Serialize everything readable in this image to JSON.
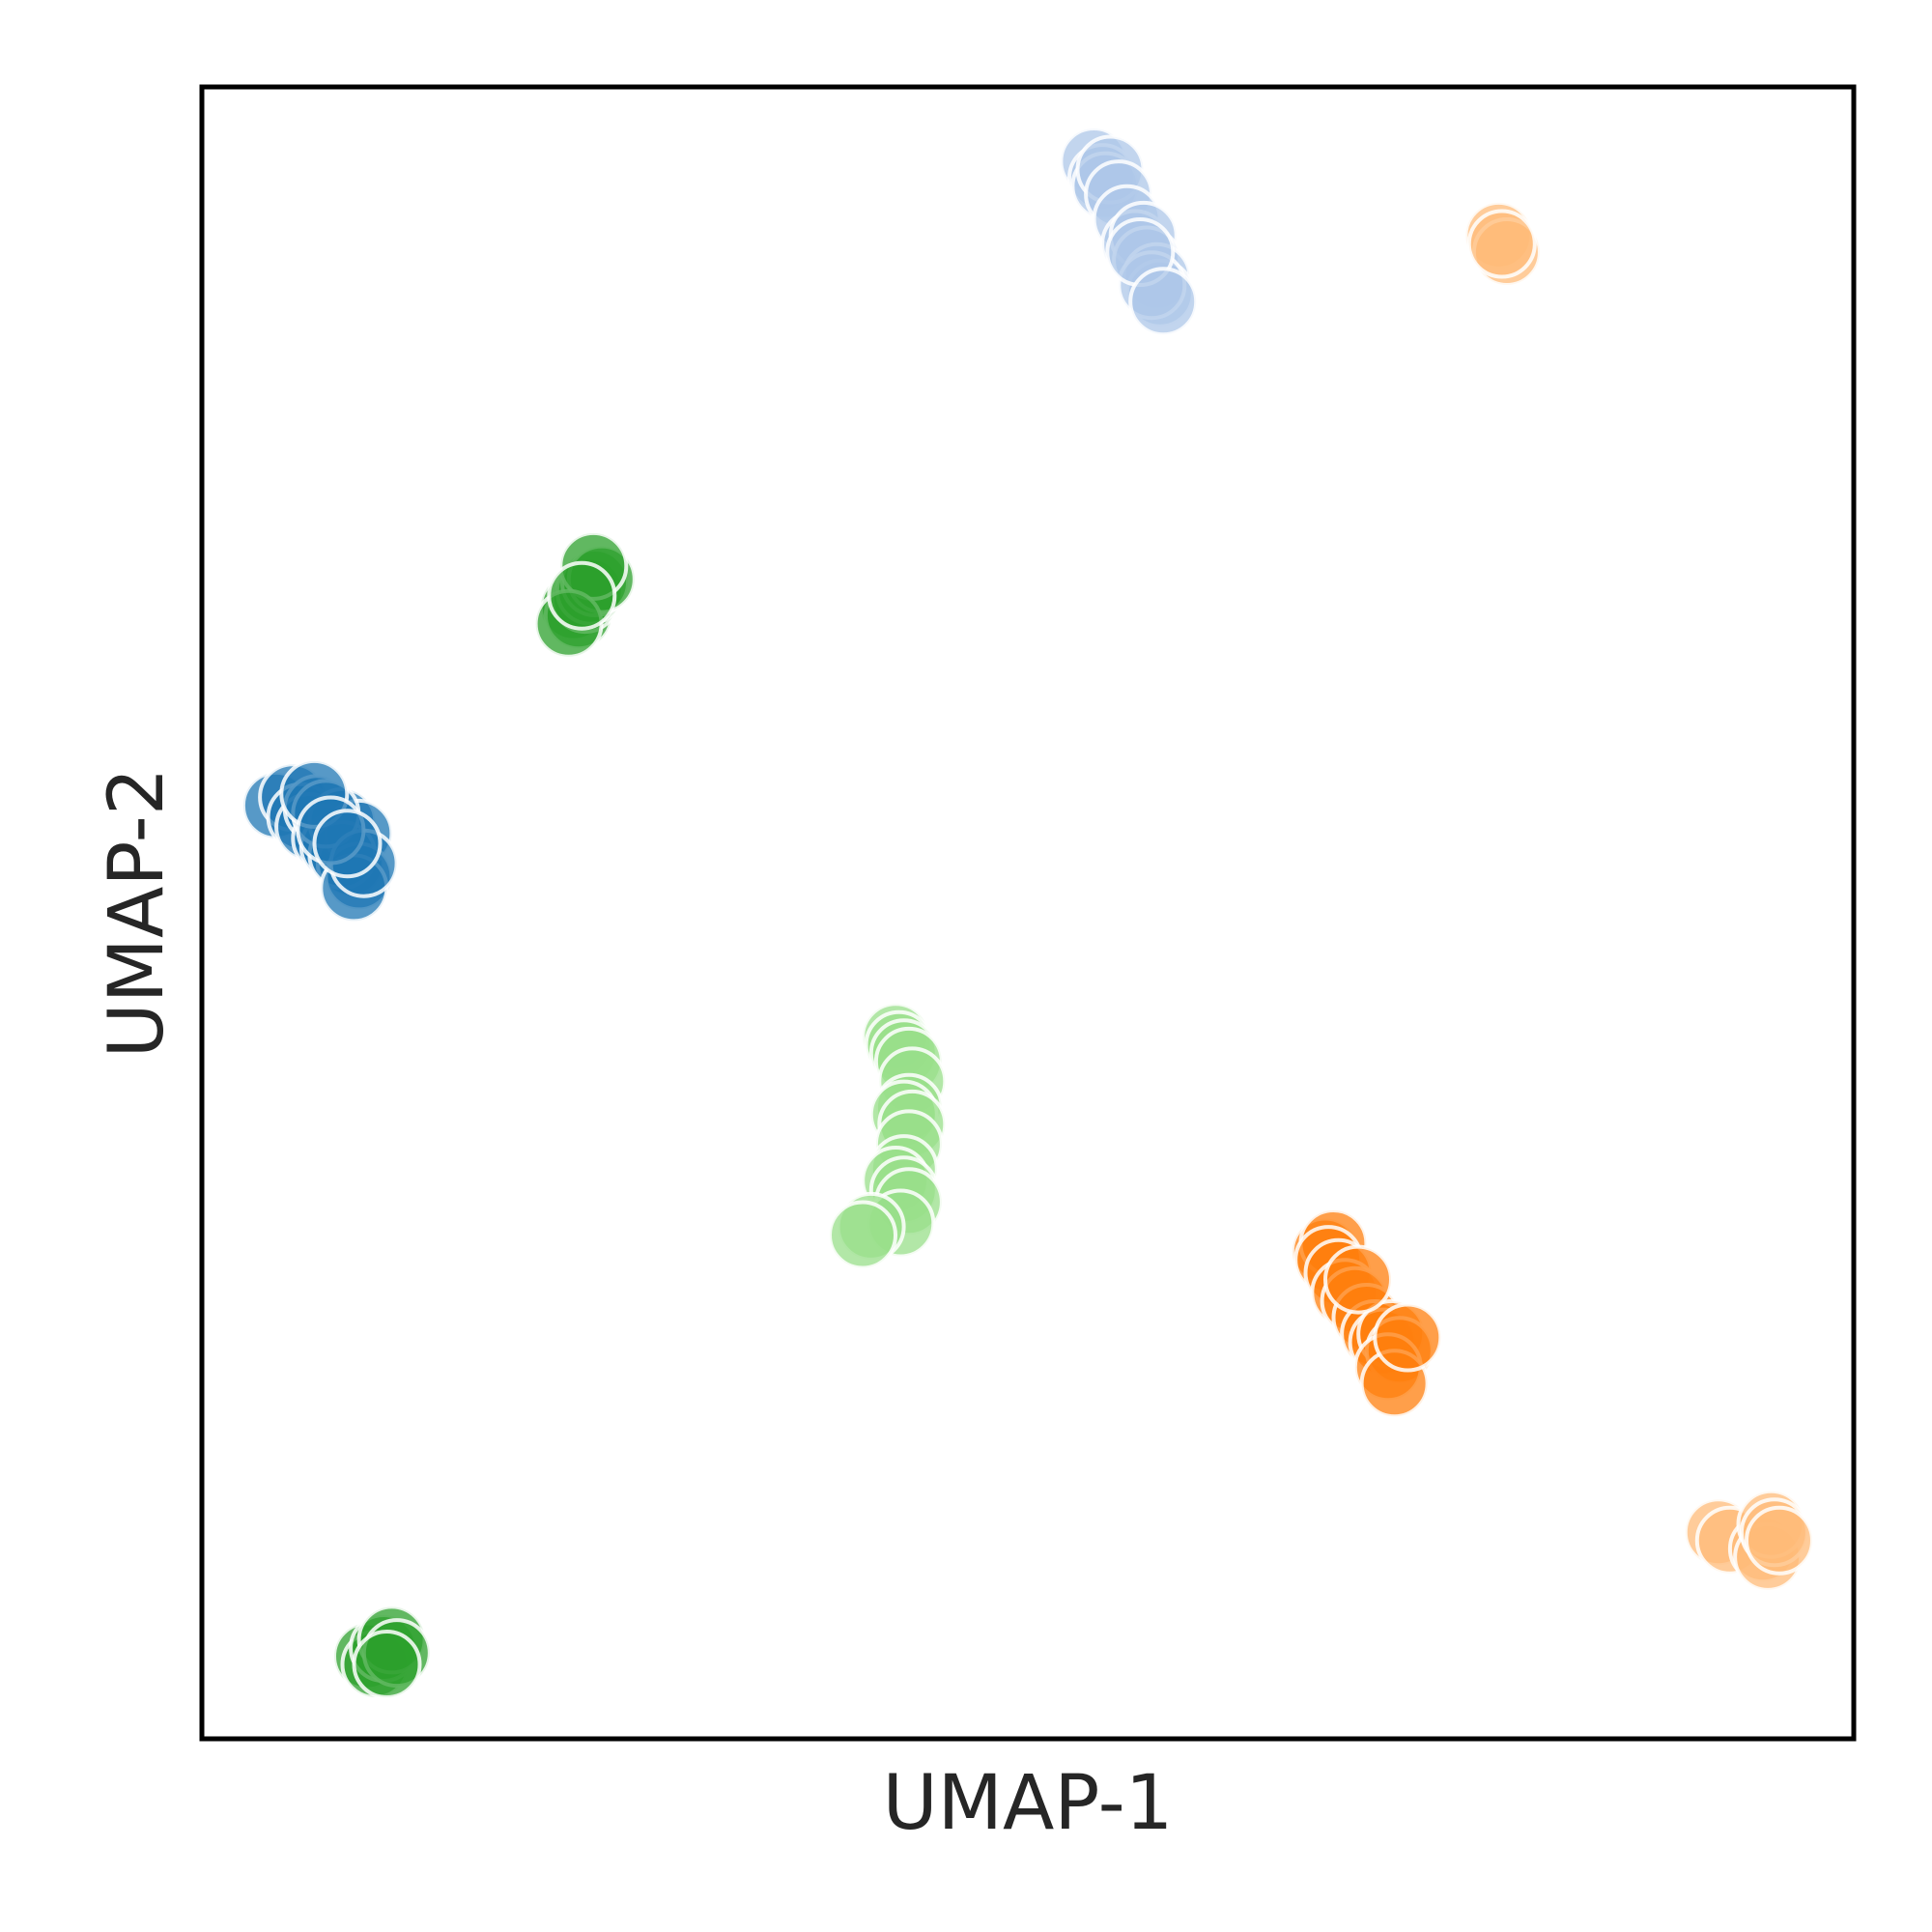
{
  "chart_data": {
    "type": "scatter",
    "xlabel": "UMAP-1",
    "ylabel": "UMAP-2",
    "xlim": [
      0,
      1
    ],
    "ylim": [
      0,
      1
    ],
    "grid": false,
    "legend": "none",
    "series": [
      {
        "color": "#1f77b4",
        "points": [
          [
            0.045,
            0.565
          ],
          [
            0.055,
            0.57
          ],
          [
            0.06,
            0.558
          ],
          [
            0.065,
            0.552
          ],
          [
            0.07,
            0.563
          ],
          [
            0.075,
            0.545
          ],
          [
            0.08,
            0.54
          ],
          [
            0.085,
            0.555
          ],
          [
            0.09,
            0.53
          ],
          [
            0.095,
            0.548
          ],
          [
            0.085,
            0.535
          ],
          [
            0.075,
            0.56
          ],
          [
            0.095,
            0.522
          ],
          [
            0.092,
            0.515
          ],
          [
            0.098,
            0.53
          ],
          [
            0.068,
            0.572
          ],
          [
            0.078,
            0.55
          ],
          [
            0.088,
            0.542
          ]
        ]
      },
      {
        "color": "#aec7e8",
        "points": [
          [
            0.54,
            0.955
          ],
          [
            0.545,
            0.945
          ],
          [
            0.547,
            0.94
          ],
          [
            0.55,
            0.95
          ],
          [
            0.555,
            0.935
          ],
          [
            0.56,
            0.92
          ],
          [
            0.565,
            0.905
          ],
          [
            0.57,
            0.91
          ],
          [
            0.572,
            0.895
          ],
          [
            0.578,
            0.885
          ],
          [
            0.58,
            0.875
          ],
          [
            0.575,
            0.88
          ],
          [
            0.568,
            0.9
          ],
          [
            0.582,
            0.87
          ]
        ]
      },
      {
        "color": "#ff7f0e",
        "points": [
          [
            0.68,
            0.295
          ],
          [
            0.685,
            0.3
          ],
          [
            0.682,
            0.29
          ],
          [
            0.688,
            0.282
          ],
          [
            0.692,
            0.27
          ],
          [
            0.698,
            0.265
          ],
          [
            0.705,
            0.255
          ],
          [
            0.71,
            0.245
          ],
          [
            0.715,
            0.24
          ],
          [
            0.72,
            0.245
          ],
          [
            0.725,
            0.235
          ],
          [
            0.718,
            0.225
          ],
          [
            0.722,
            0.215
          ],
          [
            0.73,
            0.243
          ],
          [
            0.7,
            0.278
          ]
        ]
      },
      {
        "color": "#ffbb78",
        "points": [
          [
            0.785,
            0.91
          ],
          [
            0.79,
            0.9
          ],
          [
            0.787,
            0.905
          ],
          [
            0.918,
            0.125
          ],
          [
            0.925,
            0.12
          ],
          [
            0.945,
            0.115
          ],
          [
            0.948,
            0.11
          ],
          [
            0.95,
            0.13
          ],
          [
            0.952,
            0.125
          ],
          [
            0.955,
            0.12
          ]
        ]
      },
      {
        "color": "#2ca02c",
        "points": [
          [
            0.225,
            0.685
          ],
          [
            0.228,
            0.68
          ],
          [
            0.232,
            0.69
          ],
          [
            0.235,
            0.695
          ],
          [
            0.238,
            0.7
          ],
          [
            0.242,
            0.702
          ],
          [
            0.237,
            0.71
          ],
          [
            0.222,
            0.675
          ],
          [
            0.23,
            0.692
          ],
          [
            0.1,
            0.05
          ],
          [
            0.105,
            0.045
          ],
          [
            0.11,
            0.055
          ],
          [
            0.115,
            0.06
          ],
          [
            0.118,
            0.052
          ],
          [
            0.112,
            0.045
          ]
        ]
      },
      {
        "color": "#98df8a",
        "points": [
          [
            0.42,
            0.425
          ],
          [
            0.422,
            0.42
          ],
          [
            0.425,
            0.415
          ],
          [
            0.428,
            0.41
          ],
          [
            0.43,
            0.398
          ],
          [
            0.428,
            0.382
          ],
          [
            0.425,
            0.378
          ],
          [
            0.43,
            0.372
          ],
          [
            0.428,
            0.36
          ],
          [
            0.425,
            0.345
          ],
          [
            0.42,
            0.338
          ],
          [
            0.425,
            0.332
          ],
          [
            0.428,
            0.325
          ],
          [
            0.423,
            0.312
          ],
          [
            0.405,
            0.31
          ],
          [
            0.4,
            0.305
          ]
        ]
      }
    ]
  }
}
